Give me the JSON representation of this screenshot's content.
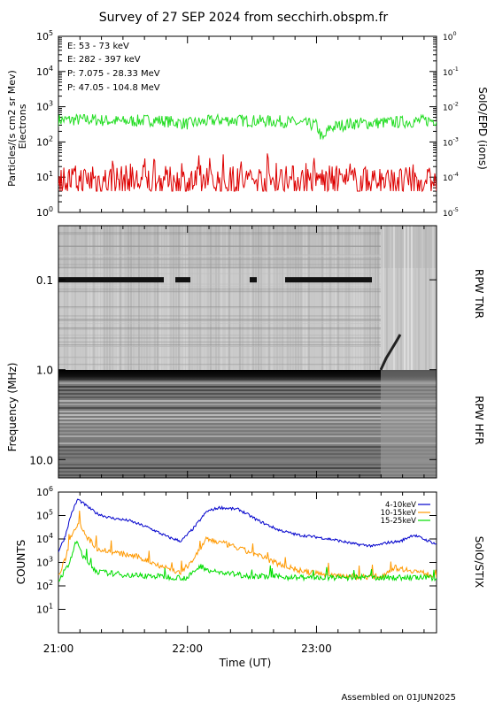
{
  "page": {
    "title": "Survey of 27 SEP 2024 from secchirh.obspm.fr",
    "footer": "Assembled on 01JUN2025"
  },
  "colors": {
    "green": "#22dd22",
    "red": "#dd0000",
    "black": "#000000",
    "blue": "#0000cc",
    "orange": "#ff9900",
    "stix_blue": "#0000cc",
    "stix_green": "#00dd00"
  },
  "chart_data": [
    {
      "type": "line",
      "panel": "particles",
      "ylabel": "Particles/(s cm2 sr Mev)",
      "ylabel2": "Electrons",
      "right_label": "SolO/EPD (ions)",
      "yscale": "log",
      "ylim": [
        1,
        100000
      ],
      "y_ticks": [
        "10^0",
        "10^1",
        "10^2",
        "10^3",
        "10^4",
        "10^5"
      ],
      "right_ticks": [
        "10^-5",
        "10^-4",
        "10^-3",
        "10^-2",
        "10^-1",
        "10^0"
      ],
      "legend": [
        {
          "label": "E: 53 - 73 keV",
          "color": "#22dd22"
        },
        {
          "label": "E: 282 - 397 keV",
          "color": "#dd0000"
        },
        {
          "label": "P: 7.075 - 28.33 MeV",
          "color": "#000000"
        },
        {
          "label": "P: 47.05 - 104.8 MeV",
          "color": "#0000cc"
        }
      ],
      "xlim_hours": [
        21.0,
        23.93
      ],
      "series": [
        {
          "name": "E: 53 - 73 keV",
          "color": "#22dd22",
          "x": [
            21.0,
            21.25,
            21.5,
            21.75,
            22.0,
            22.25,
            22.5,
            22.75,
            23.0,
            23.05,
            23.1,
            23.25,
            23.5,
            23.75,
            23.93
          ],
          "y": [
            420,
            430,
            380,
            420,
            330,
            420,
            400,
            380,
            300,
            110,
            250,
            330,
            350,
            380,
            420
          ]
        },
        {
          "name": "E: 282 - 397 keV",
          "color": "#dd0000",
          "x": [
            21.0,
            21.5,
            22.0,
            22.5,
            23.0,
            23.5,
            23.93
          ],
          "y": [
            8,
            8,
            7,
            8,
            8,
            7,
            7
          ]
        }
      ]
    },
    {
      "type": "heatmap",
      "panel": "radio",
      "ylabel": "Frequency (MHz)",
      "right_label_top": "RPW TNR",
      "right_label_bottom": "RPW HFR",
      "y_ticks": [
        "0.1",
        "1.0",
        "10.0"
      ],
      "yscale": "log",
      "ylim": [
        0.025,
        16
      ],
      "features": {
        "tnr_hfr_boundary_mhz": 0.9,
        "bright_band_mhz": 0.1
      }
    },
    {
      "type": "line",
      "panel": "stix",
      "ylabel": "COUNTS",
      "right_label": "SolO/STIX",
      "xlabel": "Time (UT)",
      "yscale": "log",
      "ylim": [
        1,
        1000000
      ],
      "y_ticks": [
        "10^1",
        "10^2",
        "10^3",
        "10^4",
        "10^5",
        "10^6"
      ],
      "x_ticks": [
        "21:00",
        "22:00",
        "23:00"
      ],
      "xlim_hours": [
        21.0,
        23.93
      ],
      "legend": [
        {
          "label": "4-10keV",
          "color": "#0000cc"
        },
        {
          "label": "10-15keV",
          "color": "#ff9900"
        },
        {
          "label": "15-25keV",
          "color": "#00dd00"
        }
      ],
      "series": [
        {
          "name": "4-10keV",
          "color": "#0000cc",
          "x": [
            21.0,
            21.05,
            21.1,
            21.15,
            21.22,
            21.3,
            21.4,
            21.55,
            21.7,
            21.85,
            21.95,
            22.05,
            22.15,
            22.25,
            22.4,
            22.55,
            22.7,
            22.85,
            23.0,
            23.15,
            23.3,
            23.45,
            23.55,
            23.65,
            23.75,
            23.85,
            23.93
          ],
          "y": [
            3000,
            12000,
            120000,
            500000,
            250000,
            120000,
            80000,
            60000,
            30000,
            12000,
            8000,
            30000,
            150000,
            220000,
            180000,
            60000,
            25000,
            15000,
            12000,
            9000,
            6000,
            5000,
            7000,
            8000,
            15000,
            9000,
            6000
          ]
        },
        {
          "name": "10-15keV",
          "color": "#ff9900",
          "x": [
            21.0,
            21.05,
            21.1,
            21.16,
            21.22,
            21.3,
            21.45,
            21.6,
            21.8,
            21.95,
            22.05,
            22.15,
            22.3,
            22.5,
            22.7,
            22.9,
            23.1,
            23.3,
            23.5,
            23.6,
            23.75,
            23.93
          ],
          "y": [
            250,
            1200,
            15000,
            60000,
            12000,
            4000,
            2500,
            1800,
            700,
            350,
            1500,
            10000,
            6000,
            2500,
            900,
            400,
            300,
            250,
            250,
            600,
            450,
            250
          ]
        },
        {
          "name": "15-25keV",
          "color": "#00dd00",
          "x": [
            21.0,
            21.07,
            21.14,
            21.2,
            21.3,
            21.5,
            21.8,
            22.0,
            22.1,
            22.2,
            22.5,
            23.0,
            23.5,
            23.93
          ],
          "y": [
            180,
            600,
            8000,
            1500,
            400,
            300,
            250,
            220,
            700,
            400,
            260,
            220,
            230,
            220
          ]
        }
      ]
    }
  ]
}
